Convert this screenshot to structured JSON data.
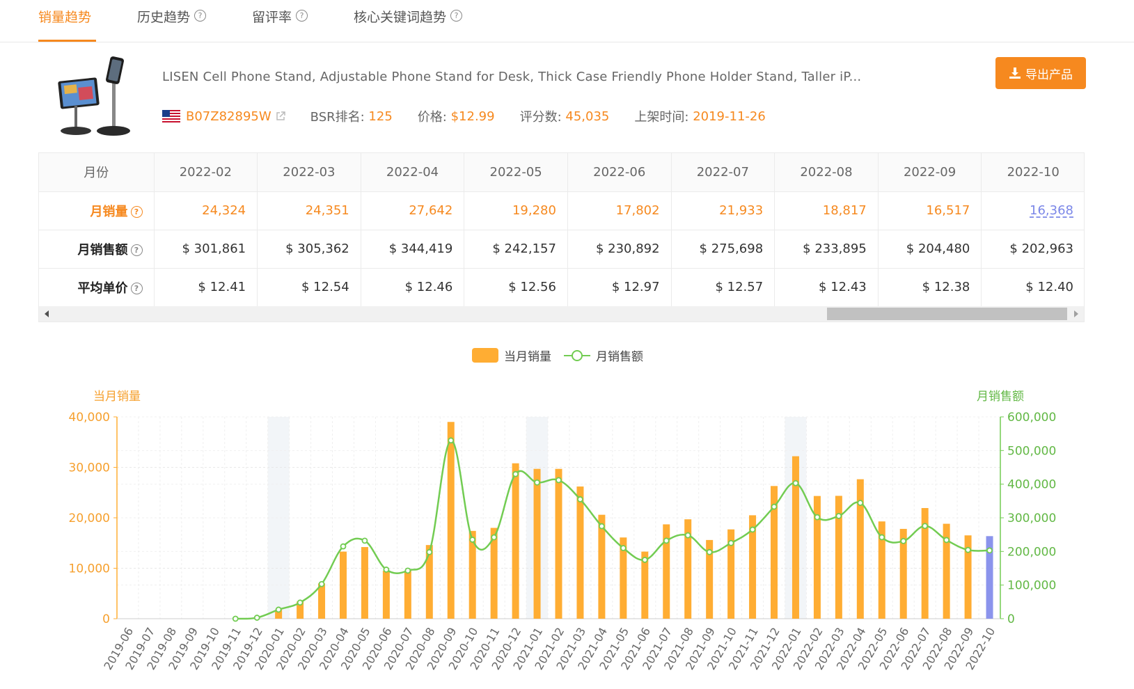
{
  "tabs": [
    {
      "label": "销量趋势",
      "active": true,
      "help": false
    },
    {
      "label": "历史趋势",
      "active": false,
      "help": true
    },
    {
      "label": "留评率",
      "active": false,
      "help": true
    },
    {
      "label": "核心关键词趋势",
      "active": false,
      "help": true
    }
  ],
  "product": {
    "title": "LISEN Cell Phone Stand, Adjustable Phone Stand for Desk, Thick Case Friendly Phone Holder Stand, Taller iP...",
    "asin": "B07Z82895W",
    "bsr_label": "BSR排名:",
    "bsr_value": "125",
    "price_label": "价格:",
    "price_value": "$12.99",
    "reviews_label": "评分数:",
    "reviews_value": "45,035",
    "listed_label": "上架时间:",
    "listed_value": "2019-11-26"
  },
  "export_label": "导出产品",
  "table": {
    "month_header": "月份",
    "months": [
      "2022-02",
      "2022-03",
      "2022-04",
      "2022-05",
      "2022-06",
      "2022-07",
      "2022-08",
      "2022-09",
      "2022-10"
    ],
    "rows": [
      {
        "label": "月销量",
        "values": [
          "24,324",
          "24,351",
          "27,642",
          "19,280",
          "17,802",
          "21,933",
          "18,817",
          "16,517",
          "16,368"
        ]
      },
      {
        "label": "月销售额",
        "values": [
          "$ 301,861",
          "$ 305,362",
          "$ 344,419",
          "$ 242,157",
          "$ 230,892",
          "$ 275,698",
          "$ 233,895",
          "$ 204,480",
          "$ 202,963"
        ]
      },
      {
        "label": "平均单价",
        "values": [
          "$ 12.41",
          "$ 12.54",
          "$ 12.46",
          "$ 12.56",
          "$ 12.97",
          "$ 12.57",
          "$ 12.43",
          "$ 12.38",
          "$ 12.40"
        ]
      }
    ]
  },
  "colors": {
    "accent": "#f6891f",
    "bar": "#ffad33",
    "bar_current": "#8b94ec",
    "line": "#72cc52",
    "link": "#7b87e8"
  },
  "chart_data": {
    "type": "bar",
    "legend": [
      "当月销量",
      "月销售额"
    ],
    "y_left_label": "当月销量",
    "y_right_label": "月销售额",
    "ylim_left": [
      0,
      40000
    ],
    "ylim_right": [
      0,
      600000
    ],
    "y_left_ticks": [
      "0",
      "10,000",
      "20,000",
      "30,000",
      "40,000"
    ],
    "y_right_ticks": [
      "0",
      "100,000",
      "200,000",
      "300,000",
      "400,000",
      "500,000",
      "600,000"
    ],
    "categories": [
      "2019-06",
      "2019-07",
      "2019-08",
      "2019-09",
      "2019-10",
      "2019-11",
      "2019-12",
      "2020-01",
      "2020-02",
      "2020-03",
      "2020-04",
      "2020-05",
      "2020-06",
      "2020-07",
      "2020-08",
      "2020-09",
      "2020-10",
      "2020-11",
      "2020-12",
      "2021-01",
      "2021-02",
      "2021-03",
      "2021-04",
      "2021-05",
      "2021-06",
      "2021-07",
      "2021-08",
      "2021-09",
      "2021-10",
      "2021-11",
      "2021-12",
      "2022-01",
      "2022-02",
      "2022-03",
      "2022-04",
      "2022-05",
      "2022-06",
      "2022-07",
      "2022-08",
      "2022-09",
      "2022-10"
    ],
    "series": [
      {
        "name": "当月销量",
        "type": "bar",
        "values": [
          null,
          null,
          null,
          null,
          null,
          null,
          null,
          1800,
          3400,
          7000,
          13300,
          14200,
          9500,
          9500,
          14600,
          39000,
          17400,
          18000,
          30800,
          29700,
          29700,
          26200,
          20600,
          16100,
          13300,
          18700,
          19700,
          15600,
          17700,
          20500,
          26300,
          32200,
          24324,
          24351,
          27642,
          19280,
          17802,
          21933,
          18817,
          16517,
          16368
        ]
      },
      {
        "name": "月销售额",
        "type": "line",
        "values": [
          null,
          null,
          null,
          null,
          null,
          0,
          3000,
          27000,
          48000,
          103000,
          215000,
          232000,
          146000,
          143000,
          198000,
          530000,
          235000,
          242000,
          430000,
          405000,
          412000,
          355000,
          275000,
          210000,
          175000,
          232000,
          248000,
          198000,
          225000,
          265000,
          333000,
          403000,
          301861,
          305362,
          344419,
          242157,
          230892,
          275698,
          233895,
          204480,
          202963
        ]
      }
    ],
    "highlight_categories": [
      "2020-01",
      "2021-01",
      "2022-01"
    ],
    "grid": true
  }
}
